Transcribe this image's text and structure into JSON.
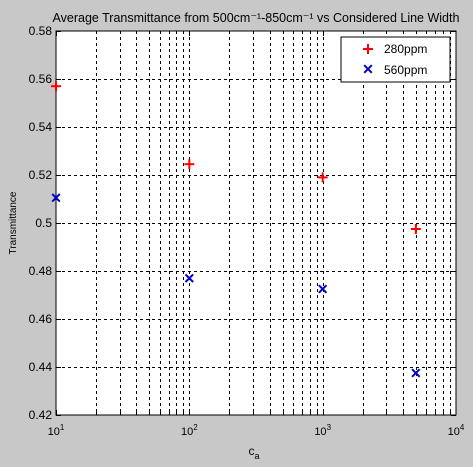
{
  "chart_data": {
    "type": "scatter",
    "title": "Average Transmittance from 500cm⁻¹-850cm⁻¹ vs Considered Line Width",
    "xlabel": "c",
    "xlabel_subscript": "a",
    "ylabel": "Transmittance",
    "xscale": "log",
    "xlim": [
      10,
      10000
    ],
    "ylim": [
      0.42,
      0.58
    ],
    "grid": true,
    "legend_position": "top-right",
    "x_ticks": [
      {
        "value": 10,
        "base": "10",
        "exp": "1"
      },
      {
        "value": 100,
        "base": "10",
        "exp": "2"
      },
      {
        "value": 1000,
        "base": "10",
        "exp": "3"
      },
      {
        "value": 10000,
        "base": "10",
        "exp": "4"
      }
    ],
    "y_ticks": [
      {
        "value": 0.42,
        "label": "0.42"
      },
      {
        "value": 0.44,
        "label": "0.44"
      },
      {
        "value": 0.46,
        "label": "0.46"
      },
      {
        "value": 0.48,
        "label": "0.48"
      },
      {
        "value": 0.5,
        "label": "0.5"
      },
      {
        "value": 0.52,
        "label": "0.52"
      },
      {
        "value": 0.54,
        "label": "0.54"
      },
      {
        "value": 0.56,
        "label": "0.56"
      },
      {
        "value": 0.58,
        "label": "0.58"
      }
    ],
    "series": [
      {
        "name": "280ppm",
        "marker": "plus",
        "color": "#ff0000",
        "points": [
          {
            "x": 10,
            "y": 0.557
          },
          {
            "x": 100,
            "y": 0.5245
          },
          {
            "x": 1000,
            "y": 0.519
          },
          {
            "x": 5000,
            "y": 0.4975
          }
        ]
      },
      {
        "name": "560ppm",
        "marker": "x",
        "color": "#0000cc",
        "points": [
          {
            "x": 10,
            "y": 0.5105
          },
          {
            "x": 100,
            "y": 0.477
          },
          {
            "x": 1000,
            "y": 0.4725
          },
          {
            "x": 5000,
            "y": 0.4375
          }
        ]
      }
    ]
  }
}
